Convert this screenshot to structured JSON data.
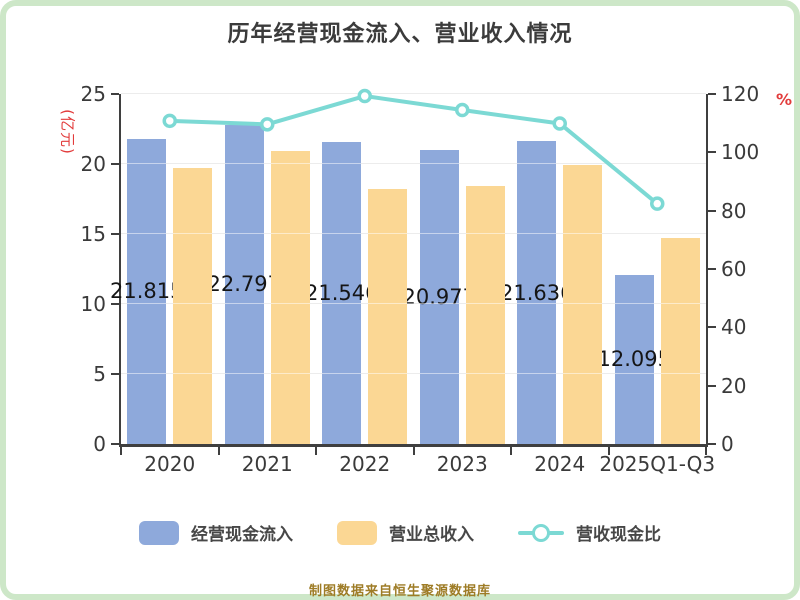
{
  "title": "历年经营现金流入、营业收入情况",
  "left_axis": {
    "unit": "(亿元)",
    "unit_color": "#e23b3b",
    "ticks": [
      0,
      5,
      10,
      15,
      20,
      25
    ],
    "max": 25
  },
  "right_axis": {
    "unit": "%",
    "unit_color": "#e23b3b",
    "ticks": [
      0,
      20,
      40,
      60,
      80,
      100,
      120
    ],
    "max": 120
  },
  "chart_data": {
    "type": "bar",
    "categories": [
      "2020",
      "2021",
      "2022",
      "2023",
      "2024",
      "2025Q1-Q3"
    ],
    "series": [
      {
        "name": "经营现金流入",
        "type": "bar",
        "color": "#8EA9DB",
        "axis": "left",
        "values": [
          21.815,
          22.797,
          21.546,
          20.977,
          21.636,
          12.095
        ],
        "labels": [
          "21.815",
          "22.797",
          "21.546",
          "20.977",
          "21.636",
          "12.095"
        ]
      },
      {
        "name": "营业总收入",
        "type": "bar",
        "color": "#FBD794",
        "axis": "left",
        "values": [
          19.7,
          20.9,
          18.2,
          18.4,
          19.95,
          14.7
        ]
      },
      {
        "name": "营收现金比",
        "type": "line",
        "color": "#7CD9D4",
        "axis": "right",
        "marker": "circle",
        "marker_fill": "#ffffff",
        "values": [
          110.8,
          109.6,
          119.3,
          114.5,
          109.9,
          82.4
        ]
      }
    ],
    "left_ylim": [
      0,
      25
    ],
    "right_ylim": [
      0,
      120
    ],
    "grid": true,
    "legend_position": "bottom",
    "title": "历年经营现金流入、营业收入情况"
  },
  "legend": {
    "items": [
      {
        "label": "经营现金流入",
        "swatch": "bar",
        "color": "#8EA9DB"
      },
      {
        "label": "营业总收入",
        "swatch": "bar",
        "color": "#FBD794"
      },
      {
        "label": "营收现金比",
        "swatch": "line",
        "color": "#7CD9D4"
      }
    ]
  },
  "footer": "制图数据来自恒生聚源数据库",
  "colors": {
    "bar_cash": "#8EA9DB",
    "bar_revenue": "#FBD794",
    "ratio_line": "#7CD9D4",
    "axis": "#3f3f3f",
    "grid": "#d8d8d8",
    "title_text": "#3b3b3b",
    "unit_text": "#e23b3b",
    "footer_text": "#9e7c26",
    "frame_border": "#cde7c8"
  }
}
